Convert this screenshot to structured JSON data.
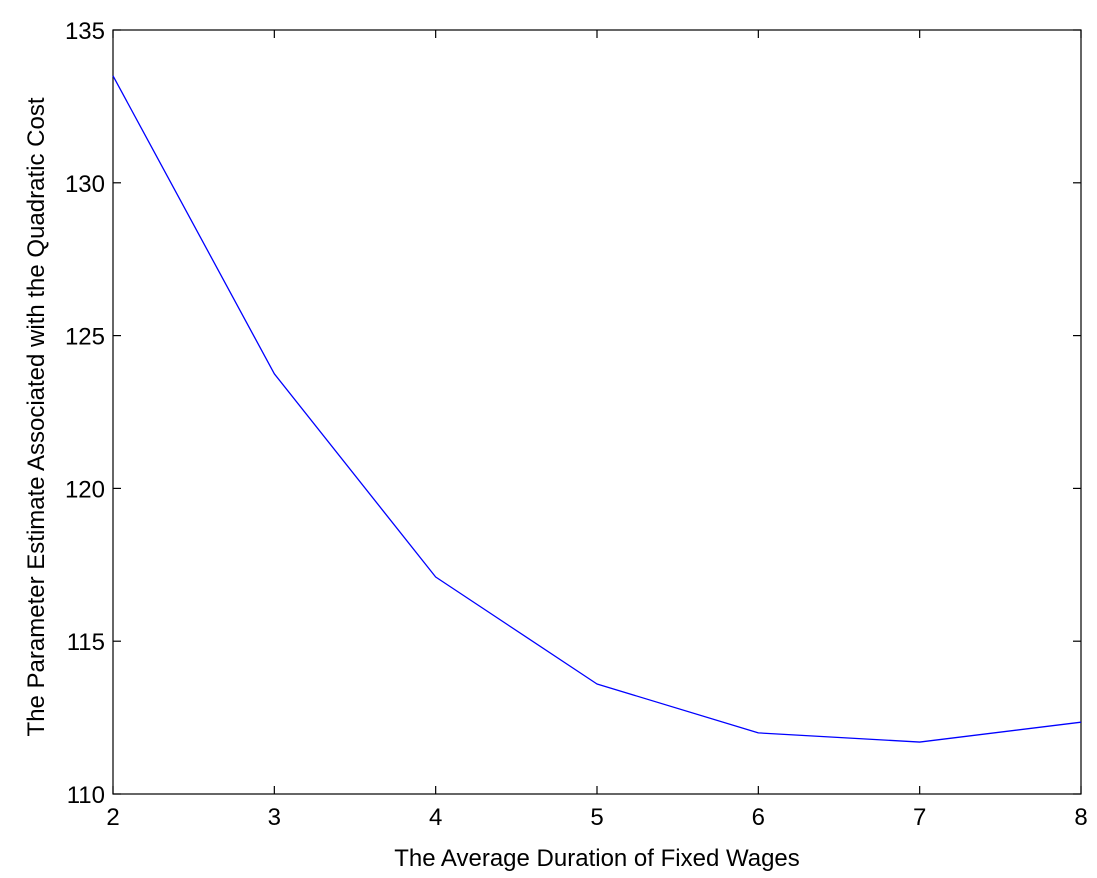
{
  "chart_data": {
    "type": "line",
    "title": "",
    "xlabel": "The Average Duration of Fixed Wages",
    "ylabel": "The Parameter Estimate Associated with the Quadratic Cost",
    "xlim": [
      2,
      8
    ],
    "ylim": [
      110,
      135
    ],
    "xticks": [
      2,
      3,
      4,
      5,
      6,
      7,
      8
    ],
    "yticks": [
      110,
      115,
      120,
      125,
      130,
      135
    ],
    "grid": false,
    "legend": "none",
    "series": [
      {
        "color": "#0000ff",
        "x": [
          2,
          3,
          4,
          5,
          6,
          7,
          8
        ],
        "y": [
          133.5,
          123.75,
          117.1,
          113.6,
          112.0,
          111.7,
          112.35
        ]
      }
    ]
  }
}
